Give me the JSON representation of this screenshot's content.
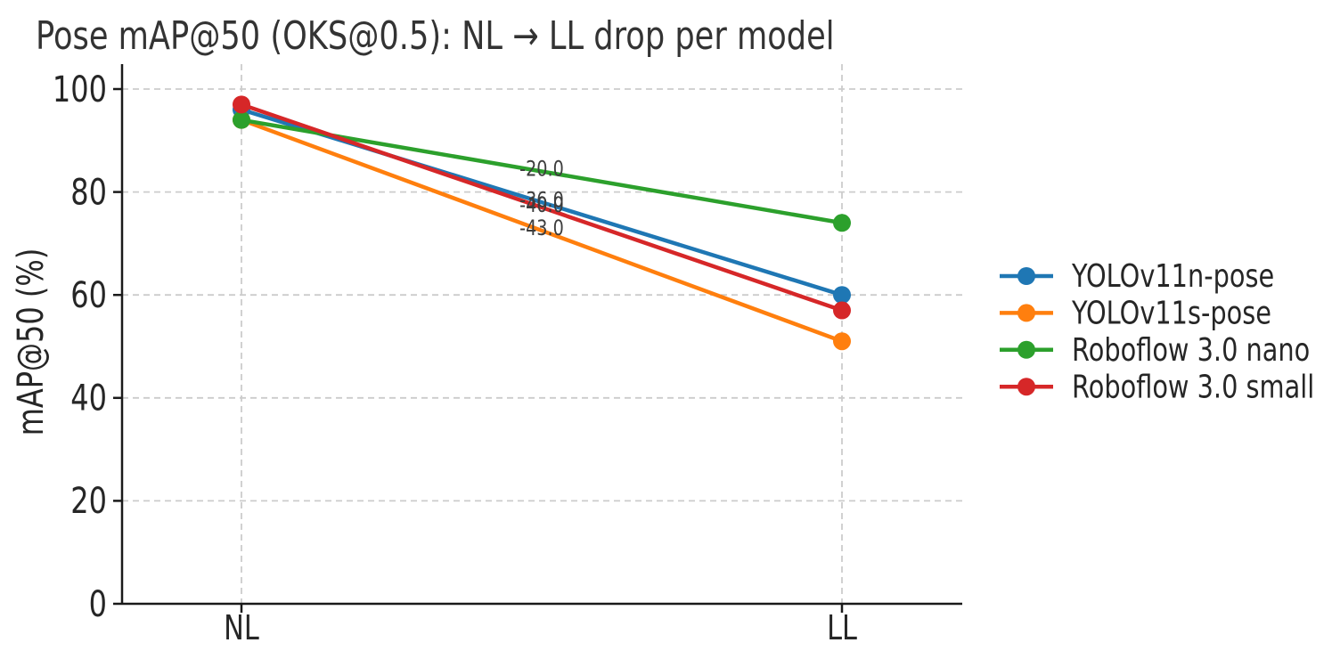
{
  "figure": {
    "title": "Pose mAP@50 (OKS@0.5): NL → LL drop per model"
  },
  "chart_data": {
    "type": "line",
    "title": "Pose mAP@50 (OKS@0.5): NL → LL drop per model",
    "xlabel": "",
    "ylabel": "mAP@50 (%)",
    "categories": [
      "NL",
      "LL"
    ],
    "series": [
      {
        "name": "YOLOv11n-pose",
        "color": "#1f77b4",
        "values": [
          96,
          60
        ],
        "drop_label": "-36.0"
      },
      {
        "name": "YOLOv11s-pose",
        "color": "#ff7f0e",
        "values": [
          94,
          51
        ],
        "drop_label": "-43.0"
      },
      {
        "name": "Roboflow 3.0 nano",
        "color": "#2ca02c",
        "values": [
          94,
          74
        ],
        "drop_label": "-20.0"
      },
      {
        "name": "Roboflow 3.0 small",
        "color": "#d62728",
        "values": [
          97,
          57
        ],
        "drop_label": "-40.0"
      }
    ],
    "yticks": [
      0,
      20,
      40,
      60,
      80,
      100
    ],
    "ylim": [
      0,
      105
    ],
    "grid": true,
    "grid_style": "dashed",
    "legend_position": "center right",
    "legend_frame": false
  },
  "colors": {
    "background": "#ffffff",
    "grid": "#cccccc",
    "axis": "#1a1a1a",
    "tick_text": "#262626",
    "title_text": "#333333",
    "annotation_text": "#3d3d3d"
  }
}
